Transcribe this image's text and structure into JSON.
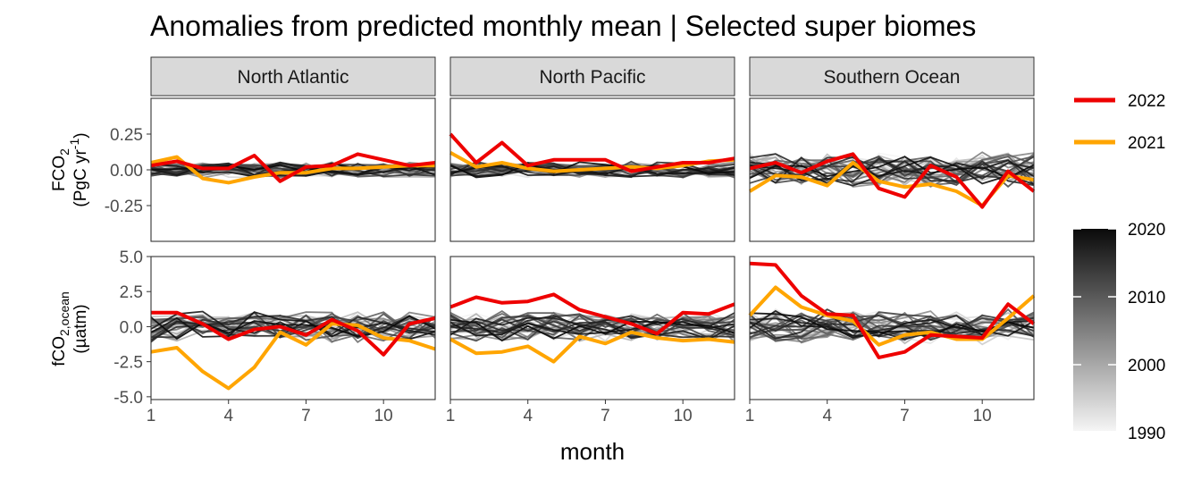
{
  "chart_data": {
    "type": "line",
    "title": "Anomalies from predicted monthly mean | Selected super biomes",
    "xlabel": "month",
    "x_ticks": [
      "1",
      "4",
      "7",
      "10"
    ],
    "facets": [
      "North Atlantic",
      "North Pacific",
      "Southern Ocean"
    ],
    "rows": [
      {
        "ylabel_main": "FCO",
        "ylabel_sub": "2",
        "ylabel_line2_a": "(PgC yr",
        "ylabel_line2_sup": "-1",
        "ylabel_line2_b": ")",
        "ylim": [
          -0.5,
          0.5
        ],
        "y_ticks": [
          "0.25",
          "0.00",
          "-0.25"
        ]
      },
      {
        "ylabel_main": "fCO",
        "ylabel_sub": "2,ocean",
        "ylabel_line2": "(µatm)",
        "ylim": [
          -5.2,
          5.0
        ],
        "y_ticks": [
          "5.0",
          "2.5",
          "0.0",
          "-2.5",
          "-5.0"
        ]
      }
    ],
    "series": [
      {
        "name": "2022",
        "color": "#ee0000",
        "panels": [
          [
            0.03,
            0.06,
            0.01,
            0.01,
            0.1,
            -0.08,
            0.02,
            0.03,
            0.11,
            0.07,
            0.03,
            0.05
          ],
          [
            0.25,
            0.05,
            0.19,
            0.03,
            0.07,
            0.07,
            0.07,
            -0.01,
            0.02,
            0.05,
            0.05,
            0.08
          ],
          [
            0.01,
            0.05,
            -0.02,
            0.06,
            0.11,
            -0.13,
            -0.19,
            0.03,
            -0.05,
            -0.26,
            -0.01,
            -0.15
          ],
          [
            1.0,
            1.0,
            0.2,
            -0.9,
            -0.2,
            0.0,
            -0.6,
            0.5,
            -0.3,
            -2.0,
            0.2,
            0.6
          ],
          [
            1.4,
            2.1,
            1.7,
            1.8,
            2.3,
            1.2,
            0.7,
            0.2,
            -0.5,
            1.0,
            0.9,
            1.6
          ],
          [
            4.5,
            4.4,
            2.2,
            0.9,
            0.8,
            -2.2,
            -1.8,
            -0.6,
            -0.7,
            -0.8,
            1.6,
            0.2
          ]
        ]
      },
      {
        "name": "2021",
        "color": "#ffa500",
        "panels": [
          [
            0.05,
            0.09,
            -0.06,
            -0.09,
            -0.05,
            -0.02,
            -0.02,
            0.01,
            0.01,
            0.02,
            0.03,
            0.03
          ],
          [
            0.12,
            0.02,
            0.05,
            0.01,
            -0.01,
            0.0,
            0.01,
            0.02,
            0.01,
            0.03,
            0.06,
            0.07
          ],
          [
            -0.15,
            -0.04,
            -0.05,
            -0.11,
            0.05,
            -0.08,
            -0.12,
            -0.1,
            -0.15,
            -0.25,
            -0.04,
            -0.07
          ],
          [
            -1.8,
            -1.5,
            -3.2,
            -4.4,
            -2.9,
            -0.4,
            -1.3,
            0.2,
            0.1,
            -0.8,
            -1.0,
            -1.6
          ],
          [
            -0.9,
            -1.9,
            -1.8,
            -1.4,
            -2.5,
            -0.7,
            -1.2,
            -0.4,
            -0.8,
            -1.0,
            -0.9,
            -1.1
          ],
          [
            0.8,
            2.8,
            1.4,
            0.8,
            0.4,
            -1.3,
            -0.6,
            -0.4,
            -0.9,
            -0.9,
            0.6,
            2.2
          ]
        ]
      }
    ],
    "background_series_color_scale": {
      "from_year": 1990,
      "to_year": 2020,
      "from_color": "#f5f5f5",
      "to_color": "#0a0a0a"
    },
    "legend": {
      "entries": [
        {
          "label": "2022",
          "color": "#ee0000"
        },
        {
          "label": "2021",
          "color": "#ffa500"
        }
      ],
      "colorbar_ticks": [
        "2020",
        "2010",
        "2000",
        "1990"
      ],
      "position": "right"
    }
  }
}
